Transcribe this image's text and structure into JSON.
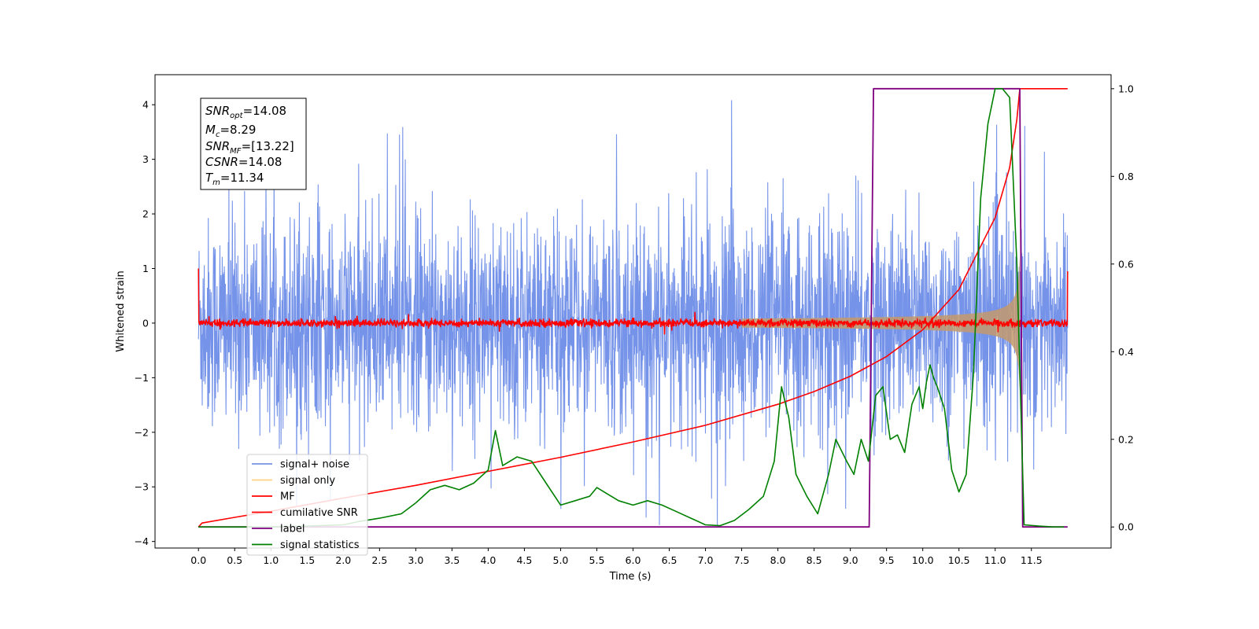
{
  "chart_data": {
    "type": "line",
    "xlabel": "Time (s)",
    "ylabel": "Whitened strain",
    "xlim": [
      -0.6,
      12.6
    ],
    "ylim": [
      -4.12,
      4.55
    ],
    "ylim_right": [
      -0.048,
      1.032
    ],
    "x_ticks": [
      "0.0",
      "0.5",
      "1.0",
      "1.5",
      "2.0",
      "2.5",
      "3.0",
      "3.5",
      "4.0",
      "4.5",
      "5.0",
      "5.5",
      "6.0",
      "6.5",
      "7.0",
      "7.5",
      "8.0",
      "8.5",
      "9.0",
      "9.5",
      "10.0",
      "10.5",
      "11.0",
      "11.5"
    ],
    "y_ticks_left": [
      "4",
      "3",
      "2",
      "1",
      "0",
      "−1",
      "−2",
      "−3",
      "−4"
    ],
    "y_ticks_right": [
      "1.0",
      "0.8",
      "0.6",
      "0.4",
      "0.2",
      "0.0"
    ],
    "annotation": {
      "snr_opt": {
        "sym": "SNR",
        "sub": "opt",
        "value": "=14.08"
      },
      "mc": {
        "sym": "M",
        "sub": "c",
        "value": "=8.29"
      },
      "snr_mf": {
        "sym": "SNR",
        "sub": "MF",
        "value": "=[13.22]"
      },
      "csnr": {
        "sym": "CSNR",
        "sub": "",
        "value": "=14.08"
      },
      "tm": {
        "sym": "T",
        "sub": "m",
        "value": "=11.34"
      }
    },
    "series": [
      {
        "name": "signal+ noise",
        "axis": "left",
        "color": "#7593e8",
        "description_stats": {
          "x_range": [
            0.0,
            12.0
          ],
          "band": [
            -2.0,
            2.3
          ],
          "peaks_max": 4.15,
          "peaks_min": -3.7
        }
      },
      {
        "name": "signal only",
        "axis": "left",
        "color": "#c8a070",
        "chirp": {
          "t_merger": 11.34,
          "amplitude_at_merger": 1.0
        }
      },
      {
        "name": "MF",
        "axis": "left",
        "color": "#ff0000",
        "band": [
          -0.08,
          0.08
        ],
        "edge_values": [
          1.0,
          0.95
        ]
      },
      {
        "name": "cumilative SNR",
        "axis": "right",
        "color": "#ff0000",
        "x": [
          0.0,
          0.05,
          0.5,
          1.0,
          2.0,
          3.0,
          4.0,
          5.0,
          6.0,
          7.0,
          8.0,
          8.5,
          9.0,
          9.5,
          10.0,
          10.5,
          11.0,
          11.2,
          11.3,
          11.34,
          12.0
        ],
        "y": [
          0.0,
          0.009,
          0.022,
          0.036,
          0.066,
          0.095,
          0.127,
          0.159,
          0.194,
          0.232,
          0.28,
          0.309,
          0.344,
          0.389,
          0.45,
          0.542,
          0.706,
          0.82,
          0.93,
          1.0,
          1.0
        ]
      },
      {
        "name": "label",
        "axis": "right",
        "color": "#800080",
        "x": [
          0.0,
          9.26,
          9.32,
          11.34,
          11.38,
          12.0
        ],
        "y": [
          0.0,
          0.0,
          1.0,
          1.0,
          0.0,
          0.0
        ]
      },
      {
        "name": "signal statistics",
        "axis": "right",
        "color": "#008000",
        "x": [
          0.0,
          0.5,
          1.0,
          1.5,
          2.0,
          2.2,
          2.5,
          2.8,
          3.0,
          3.2,
          3.4,
          3.6,
          3.8,
          4.0,
          4.1,
          4.2,
          4.4,
          4.6,
          4.8,
          5.0,
          5.2,
          5.4,
          5.5,
          5.6,
          5.8,
          6.0,
          6.2,
          6.4,
          6.6,
          6.8,
          7.0,
          7.2,
          7.4,
          7.6,
          7.8,
          7.95,
          8.05,
          8.15,
          8.25,
          8.4,
          8.55,
          8.7,
          8.8,
          8.95,
          9.05,
          9.15,
          9.25,
          9.35,
          9.45,
          9.55,
          9.65,
          9.75,
          9.85,
          9.95,
          10.0,
          10.05,
          10.1,
          10.15,
          10.2,
          10.3,
          10.4,
          10.5,
          10.6,
          10.7,
          10.8,
          10.9,
          11.0,
          11.1,
          11.2,
          11.3,
          11.4,
          11.6,
          11.8,
          11.95
        ],
        "y": [
          0.0,
          0.0,
          0.0,
          0.002,
          0.005,
          0.012,
          0.02,
          0.03,
          0.055,
          0.085,
          0.095,
          0.085,
          0.1,
          0.13,
          0.22,
          0.14,
          0.16,
          0.15,
          0.1,
          0.05,
          0.06,
          0.07,
          0.09,
          0.08,
          0.06,
          0.05,
          0.06,
          0.05,
          0.035,
          0.02,
          0.005,
          0.003,
          0.015,
          0.04,
          0.07,
          0.15,
          0.32,
          0.25,
          0.12,
          0.07,
          0.03,
          0.12,
          0.2,
          0.15,
          0.12,
          0.2,
          0.15,
          0.3,
          0.32,
          0.2,
          0.21,
          0.17,
          0.28,
          0.32,
          0.27,
          0.33,
          0.37,
          0.34,
          0.32,
          0.27,
          0.13,
          0.08,
          0.12,
          0.35,
          0.75,
          0.92,
          1.0,
          1.0,
          0.98,
          0.6,
          0.005,
          0.002,
          0.0,
          0.0
        ]
      }
    ],
    "legend": {
      "placement": "lower-left"
    }
  }
}
